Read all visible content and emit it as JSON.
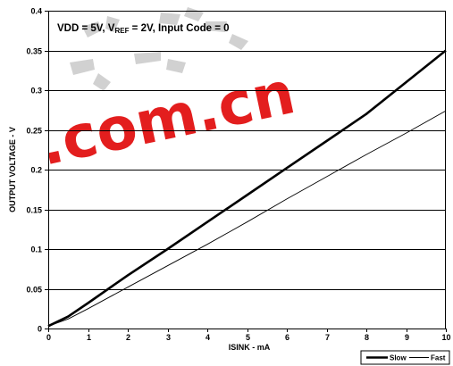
{
  "chart_data": {
    "type": "line",
    "xlabel": "ISINK - mA",
    "ylabel": "OUTPUT VOLTAGE - V",
    "xlim": [
      0,
      10
    ],
    "ylim": [
      0,
      0.4
    ],
    "x_ticks": [
      "0",
      "1",
      "2",
      "3",
      "4",
      "5",
      "6",
      "7",
      "8",
      "9",
      "10"
    ],
    "y_ticks": [
      "0",
      "0.05",
      "0.1",
      "0.15",
      "0.2",
      "0.25",
      "0.3",
      "0.35",
      "0.4"
    ],
    "grid": "horizontal",
    "annotation": {
      "p1": "VDD = 5V, V",
      "sub": "REF",
      "p2": " = 2V, Input Code = 0"
    },
    "legend_position": "bottom-right",
    "series": [
      {
        "name": "Slow",
        "x": [
          0,
          0.5,
          1,
          2,
          3,
          4,
          5,
          6,
          7,
          8,
          9,
          10
        ],
        "y": [
          0.003,
          0.015,
          0.032,
          0.067,
          0.1,
          0.134,
          0.168,
          0.202,
          0.236,
          0.27,
          0.31,
          0.35
        ]
      },
      {
        "name": "Fast",
        "x": [
          0,
          0.5,
          1,
          2,
          3,
          4,
          5,
          6,
          7,
          8,
          9,
          10
        ],
        "y": [
          0.003,
          0.012,
          0.025,
          0.052,
          0.079,
          0.106,
          0.134,
          0.163,
          0.191,
          0.219,
          0.246,
          0.274
        ]
      }
    ],
    "watermark": ".com.cn"
  }
}
